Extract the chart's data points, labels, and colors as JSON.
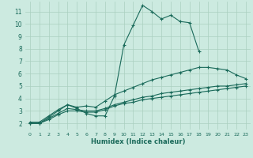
{
  "title": "",
  "xlabel": "Humidex (Indice chaleur)",
  "ylabel": "",
  "bg_color": "#cceae0",
  "grid_color": "#aad0c0",
  "line_color": "#1a6a5a",
  "xlim": [
    -0.5,
    23.5
  ],
  "ylim": [
    1.5,
    11.8
  ],
  "xticks": [
    0,
    1,
    2,
    3,
    4,
    5,
    6,
    7,
    8,
    9,
    10,
    11,
    12,
    13,
    14,
    15,
    16,
    17,
    18,
    19,
    20,
    21,
    22,
    23
  ],
  "yticks": [
    2,
    3,
    4,
    5,
    6,
    7,
    8,
    9,
    10,
    11
  ],
  "series": [
    {
      "x": [
        0,
        1,
        2,
        3,
        4,
        5,
        6,
        7,
        8,
        9,
        10,
        11,
        12,
        13,
        14,
        15,
        16,
        17,
        18
      ],
      "y": [
        2.0,
        2.0,
        2.5,
        3.0,
        3.5,
        3.2,
        2.8,
        2.6,
        2.6,
        4.2,
        8.3,
        9.9,
        11.5,
        11.0,
        10.4,
        10.7,
        10.2,
        10.1,
        7.8
      ],
      "marker": "+"
    },
    {
      "x": [
        0,
        1,
        2,
        3,
        4,
        5,
        6,
        7,
        8,
        9,
        10,
        11,
        12,
        13,
        14,
        15,
        16,
        17,
        18,
        19,
        20,
        21,
        22,
        23
      ],
      "y": [
        2.1,
        2.1,
        2.6,
        3.1,
        3.5,
        3.3,
        3.4,
        3.3,
        3.8,
        4.3,
        4.6,
        4.9,
        5.2,
        5.5,
        5.7,
        5.9,
        6.1,
        6.3,
        6.5,
        6.5,
        6.4,
        6.3,
        5.9,
        5.6
      ],
      "marker": "+"
    },
    {
      "x": [
        0,
        1,
        2,
        3,
        4,
        5,
        6,
        7,
        8,
        9,
        10,
        11,
        12,
        13,
        14,
        15,
        16,
        17,
        18,
        19,
        20,
        21,
        22,
        23
      ],
      "y": [
        2.0,
        2.0,
        2.4,
        2.8,
        3.2,
        3.1,
        3.0,
        3.0,
        3.2,
        3.5,
        3.7,
        3.9,
        4.1,
        4.2,
        4.4,
        4.5,
        4.6,
        4.7,
        4.8,
        4.9,
        5.0,
        5.0,
        5.1,
        5.2
      ],
      "marker": "+"
    },
    {
      "x": [
        0,
        1,
        2,
        3,
        4,
        5,
        6,
        7,
        8,
        9,
        10,
        11,
        12,
        13,
        14,
        15,
        16,
        17,
        18,
        19,
        20,
        21,
        22,
        23
      ],
      "y": [
        2.0,
        2.0,
        2.3,
        2.7,
        3.0,
        3.0,
        2.9,
        2.9,
        3.1,
        3.4,
        3.6,
        3.7,
        3.9,
        4.0,
        4.1,
        4.2,
        4.3,
        4.4,
        4.5,
        4.6,
        4.7,
        4.8,
        4.9,
        5.0
      ],
      "marker": "+"
    }
  ]
}
